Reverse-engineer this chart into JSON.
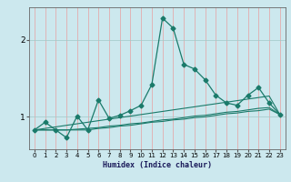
{
  "title": "",
  "xlabel": "Humidex (Indice chaleur)",
  "bg_color": "#cce8ee",
  "line_color": "#1a7a6a",
  "grid_color_v": "#e8a0a0",
  "grid_color_h": "#a0c8c8",
  "xlim": [
    -0.5,
    23.5
  ],
  "ylim": [
    0.58,
    2.42
  ],
  "yticks": [
    1,
    2
  ],
  "xticks": [
    0,
    1,
    2,
    3,
    4,
    5,
    6,
    7,
    8,
    9,
    10,
    11,
    12,
    13,
    14,
    15,
    16,
    17,
    18,
    19,
    20,
    21,
    22,
    23
  ],
  "series1_x": [
    0,
    1,
    2,
    3,
    4,
    5,
    6,
    7,
    8,
    9,
    10,
    11,
    12,
    13,
    14,
    15,
    16,
    17,
    18,
    19,
    20,
    21,
    22,
    23
  ],
  "series1_y": [
    0.83,
    0.93,
    0.83,
    0.73,
    1.01,
    0.83,
    1.22,
    0.98,
    1.02,
    1.08,
    1.15,
    1.42,
    2.28,
    2.15,
    1.68,
    1.62,
    1.48,
    1.28,
    1.18,
    1.15,
    1.28,
    1.38,
    1.18,
    1.03
  ],
  "series2_x": [
    0,
    1,
    2,
    3,
    4,
    5,
    6,
    7,
    8,
    9,
    10,
    11,
    12,
    13,
    14,
    15,
    16,
    17,
    18,
    19,
    20,
    21,
    22,
    23
  ],
  "series2_y": [
    0.83,
    0.85,
    0.87,
    0.89,
    0.91,
    0.93,
    0.95,
    0.97,
    0.99,
    1.01,
    1.03,
    1.05,
    1.07,
    1.09,
    1.11,
    1.13,
    1.15,
    1.17,
    1.19,
    1.21,
    1.23,
    1.25,
    1.27,
    1.03
  ],
  "series3_x": [
    0,
    1,
    2,
    3,
    4,
    5,
    6,
    7,
    8,
    9,
    10,
    11,
    12,
    13,
    14,
    15,
    16,
    17,
    18,
    19,
    20,
    21,
    22,
    23
  ],
  "series3_y": [
    0.83,
    0.83,
    0.83,
    0.83,
    0.84,
    0.85,
    0.86,
    0.88,
    0.89,
    0.91,
    0.92,
    0.94,
    0.96,
    0.97,
    0.99,
    1.01,
    1.02,
    1.04,
    1.06,
    1.07,
    1.09,
    1.11,
    1.12,
    1.03
  ],
  "series4_x": [
    0,
    1,
    2,
    3,
    4,
    5,
    6,
    7,
    8,
    9,
    10,
    11,
    12,
    13,
    14,
    15,
    16,
    17,
    18,
    19,
    20,
    21,
    22,
    23
  ],
  "series4_y": [
    0.83,
    0.83,
    0.83,
    0.83,
    0.83,
    0.83,
    0.85,
    0.86,
    0.88,
    0.89,
    0.91,
    0.93,
    0.94,
    0.96,
    0.97,
    0.99,
    1.0,
    1.02,
    1.04,
    1.05,
    1.07,
    1.08,
    1.1,
    1.03
  ]
}
